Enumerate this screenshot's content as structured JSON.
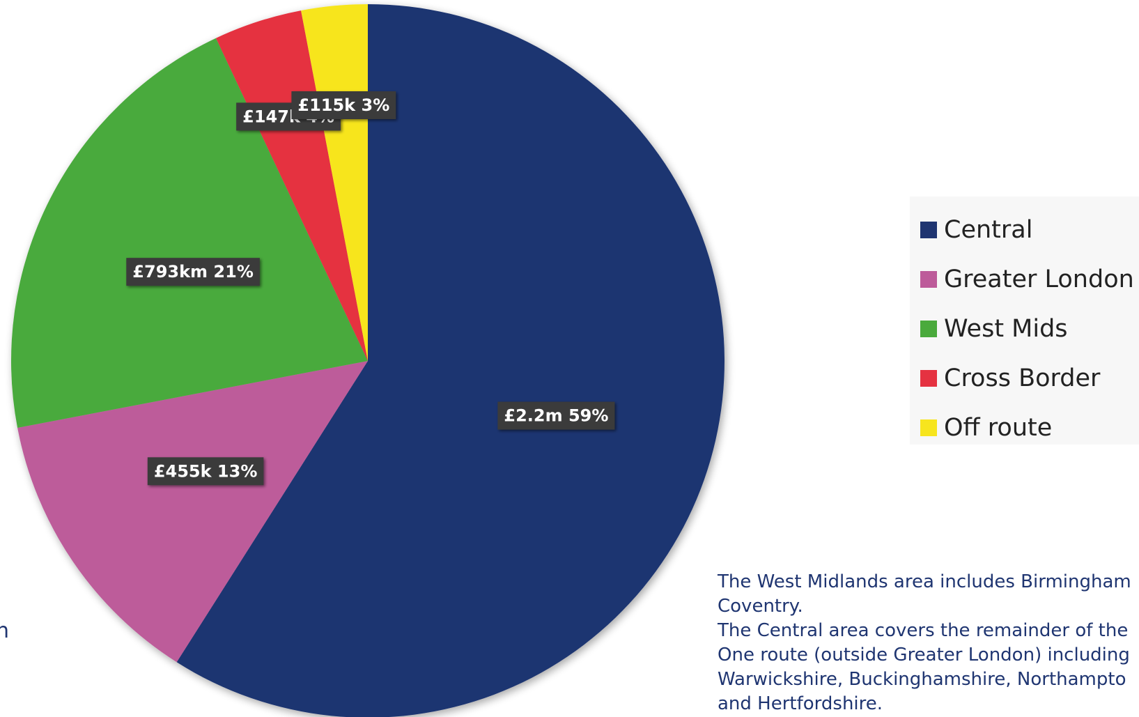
{
  "chart_data": {
    "type": "pie",
    "title": "",
    "categories": [
      "Central",
      "Greater London",
      "West Mids",
      "Cross Border",
      "Off route"
    ],
    "values": [
      59,
      13,
      21,
      4,
      3
    ],
    "value_labels": [
      "£2.2m 59%",
      "£455k 13%",
      "£793km 21%",
      "£147k 4%",
      "£115k 3%"
    ],
    "colors": [
      "#1f3571",
      "#bd5b9a",
      "#4aaa3c",
      "#e53241",
      "#f7e51e"
    ],
    "start_angle_deg": 0,
    "direction": "clockwise",
    "legend_position": "right"
  },
  "legend": {
    "items": [
      {
        "label": "Central",
        "color": "#1f3571"
      },
      {
        "label": "Greater London",
        "color": "#bd5b9a"
      },
      {
        "label": "West Mids",
        "color": "#4aaa3c"
      },
      {
        "label": "Cross Border",
        "color": "#e53241"
      },
      {
        "label": "Off route",
        "color": "#f7e51e"
      }
    ]
  },
  "notes": {
    "lines": [
      "The West Midlands area includes Birmingham",
      "Coventry.",
      "The Central area covers the remainder of the",
      "One route (outside Greater London) including",
      "Warwickshire, Buckinghamshire, Northampto",
      "and Hertfordshire."
    ]
  },
  "edge_fragment": "n"
}
